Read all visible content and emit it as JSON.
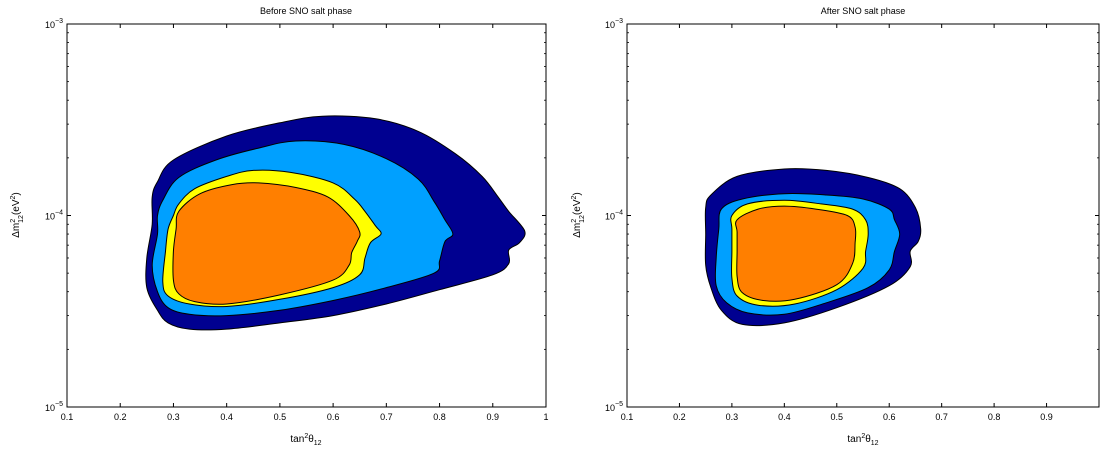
{
  "chart_data": [
    {
      "type": "contour",
      "title": "Before SNO salt phase",
      "xlabel": "tan",
      "xlabel_sup": "2",
      "xlabel_theta": "θ",
      "xlabel_sub": "12",
      "ylabel_delta": "Δm",
      "ylabel_sup": "2",
      "ylabel_sub": "12",
      "ylabel_unit": "(eV",
      "ylabel_unit_sup": "2",
      "ylabel_close": ")",
      "xlim": [
        0.1,
        1.0
      ],
      "ylim": [
        1e-05,
        0.001
      ],
      "yscale": "log",
      "xticks": [
        0.1,
        0.2,
        0.3,
        0.4,
        0.5,
        0.6,
        0.7,
        0.8,
        0.9,
        1
      ],
      "xtick_labels": [
        "0.1",
        "0.2",
        "0.3",
        "0.4",
        "0.5",
        "0.6",
        "0.7",
        "0.8",
        "0.9",
        "1"
      ],
      "yticks": [
        {
          "value": 1e-05,
          "base": "10",
          "exp": "−5"
        },
        {
          "value": 0.0001,
          "base": "10",
          "exp": "−4"
        },
        {
          "value": 0.001,
          "base": "10",
          "exp": "−3"
        }
      ],
      "grid": false,
      "regions": [
        {
          "color": "#000090",
          "points": [
            [
              0.27,
              0.00015
            ],
            [
              0.3,
              0.000195
            ],
            [
              0.4,
              0.00026
            ],
            [
              0.5,
              0.000305
            ],
            [
              0.58,
              0.00033
            ],
            [
              0.68,
              0.00032
            ],
            [
              0.76,
              0.000275
            ],
            [
              0.83,
              0.00021
            ],
            [
              0.88,
              0.00016
            ],
            [
              0.91,
              0.000125
            ],
            [
              0.93,
              0.000105
            ],
            [
              0.96,
              8.3e-05
            ],
            [
              0.95,
              7.2e-05
            ],
            [
              0.93,
              6.6e-05
            ],
            [
              0.93,
              5.6e-05
            ],
            [
              0.9,
              4.9e-05
            ],
            [
              0.8,
              4.1e-05
            ],
            [
              0.7,
              3.45e-05
            ],
            [
              0.6,
              3e-05
            ],
            [
              0.5,
              2.75e-05
            ],
            [
              0.4,
              2.55e-05
            ],
            [
              0.33,
              2.55e-05
            ],
            [
              0.29,
              2.75e-05
            ],
            [
              0.27,
              3.2e-05
            ],
            [
              0.25,
              4.2e-05
            ],
            [
              0.25,
              6e-05
            ],
            [
              0.26,
              9e-05
            ],
            [
              0.26,
              0.000125
            ]
          ]
        },
        {
          "color": "#00a0ff",
          "points": [
            [
              0.28,
              0.00012
            ],
            [
              0.31,
              0.000158
            ],
            [
              0.38,
              0.000195
            ],
            [
              0.46,
              0.000225
            ],
            [
              0.53,
              0.000245
            ],
            [
              0.62,
              0.000235
            ],
            [
              0.7,
              0.000198
            ],
            [
              0.76,
              0.000155
            ],
            [
              0.79,
              0.000118
            ],
            [
              0.81,
              9.5e-05
            ],
            [
              0.825,
              8e-05
            ],
            [
              0.81,
              7.3e-05
            ],
            [
              0.8,
              5.8e-05
            ],
            [
              0.79,
              5e-05
            ],
            [
              0.7,
              4.2e-05
            ],
            [
              0.6,
              3.6e-05
            ],
            [
              0.5,
              3.2e-05
            ],
            [
              0.4,
              3e-05
            ],
            [
              0.33,
              3.05e-05
            ],
            [
              0.29,
              3.3e-05
            ],
            [
              0.27,
              4e-05
            ],
            [
              0.26,
              5.5e-05
            ],
            [
              0.27,
              8e-05
            ],
            [
              0.27,
              0.0001
            ]
          ]
        },
        {
          "color": "#ffff00",
          "points": [
            [
              0.31,
              0.000115
            ],
            [
              0.34,
              0.000138
            ],
            [
              0.4,
              0.00016
            ],
            [
              0.45,
              0.000172
            ],
            [
              0.52,
              0.000168
            ],
            [
              0.6,
              0.000148
            ],
            [
              0.64,
              0.000122
            ],
            [
              0.66,
              0.000105
            ],
            [
              0.68,
              8.8e-05
            ],
            [
              0.69,
              8e-05
            ],
            [
              0.67,
              7.2e-05
            ],
            [
              0.66,
              6e-05
            ],
            [
              0.65,
              4.9e-05
            ],
            [
              0.6,
              4.2e-05
            ],
            [
              0.5,
              3.65e-05
            ],
            [
              0.4,
              3.35e-05
            ],
            [
              0.33,
              3.45e-05
            ],
            [
              0.29,
              3.8e-05
            ],
            [
              0.28,
              4.5e-05
            ],
            [
              0.285,
              6.5e-05
            ],
            [
              0.29,
              8.5e-05
            ],
            [
              0.3,
              0.0001
            ]
          ]
        },
        {
          "color": "#ff7f00",
          "points": [
            [
              0.31,
              0.000105
            ],
            [
              0.35,
              0.00013
            ],
            [
              0.41,
              0.000145
            ],
            [
              0.46,
              0.000148
            ],
            [
              0.53,
              0.00014
            ],
            [
              0.59,
              0.000125
            ],
            [
              0.63,
              0.0001
            ],
            [
              0.65,
              8.2e-05
            ],
            [
              0.645,
              7.3e-05
            ],
            [
              0.635,
              6.4e-05
            ],
            [
              0.63,
              5.5e-05
            ],
            [
              0.6,
              4.6e-05
            ],
            [
              0.5,
              3.85e-05
            ],
            [
              0.4,
              3.45e-05
            ],
            [
              0.34,
              3.55e-05
            ],
            [
              0.31,
              3.9e-05
            ],
            [
              0.3,
              4.6e-05
            ],
            [
              0.3,
              6.5e-05
            ],
            [
              0.305,
              8.5e-05
            ]
          ]
        }
      ]
    },
    {
      "type": "contour",
      "title": "After SNO salt phase",
      "xlabel": "tan",
      "xlabel_sup": "2",
      "xlabel_theta": "θ",
      "xlabel_sub": "12",
      "ylabel_delta": "Δm",
      "ylabel_sup": "2",
      "ylabel_sub": "12",
      "ylabel_unit": "(eV",
      "ylabel_unit_sup": "2",
      "ylabel_close": ")",
      "xlim": [
        0.1,
        1.0
      ],
      "ylim": [
        1e-05,
        0.001
      ],
      "yscale": "log",
      "xticks": [
        0.1,
        0.2,
        0.3,
        0.4,
        0.5,
        0.6,
        0.7,
        0.8,
        0.9,
        1
      ],
      "xtick_labels": [
        "0.1",
        "0.2",
        "0.3",
        "0.4",
        "0.5",
        "0.6",
        "0.7",
        "0.8",
        "0.9",
        ""
      ],
      "yticks": [
        {
          "value": 1e-05,
          "base": "10",
          "exp": "−5"
        },
        {
          "value": 0.0001,
          "base": "10",
          "exp": "−4"
        },
        {
          "value": 0.001,
          "base": "10",
          "exp": "−3"
        }
      ],
      "grid": false,
      "regions": [
        {
          "color": "#000090",
          "points": [
            [
              0.26,
              0.000128
            ],
            [
              0.31,
              0.00016
            ],
            [
              0.4,
              0.000175
            ],
            [
              0.48,
              0.000172
            ],
            [
              0.56,
              0.000158
            ],
            [
              0.62,
              0.000138
            ],
            [
              0.65,
              0.00011
            ],
            [
              0.66,
              8.5e-05
            ],
            [
              0.655,
              7.3e-05
            ],
            [
              0.64,
              6.5e-05
            ],
            [
              0.64,
              5.4e-05
            ],
            [
              0.6,
              4.3e-05
            ],
            [
              0.5,
              3.3e-05
            ],
            [
              0.4,
              2.75e-05
            ],
            [
              0.32,
              2.7e-05
            ],
            [
              0.28,
              3.2e-05
            ],
            [
              0.26,
              4.2e-05
            ],
            [
              0.25,
              5.5e-05
            ],
            [
              0.25,
              8e-05
            ],
            [
              0.25,
              0.00011
            ]
          ]
        },
        {
          "color": "#00a0ff",
          "points": [
            [
              0.28,
              0.000108
            ],
            [
              0.32,
              0.000122
            ],
            [
              0.4,
              0.00013
            ],
            [
              0.48,
              0.000128
            ],
            [
              0.55,
              0.000122
            ],
            [
              0.6,
              0.000108
            ],
            [
              0.61,
              9.5e-05
            ],
            [
              0.62,
              8e-05
            ],
            [
              0.61,
              6.5e-05
            ],
            [
              0.6,
              5.2e-05
            ],
            [
              0.56,
              4.2e-05
            ],
            [
              0.48,
              3.5e-05
            ],
            [
              0.4,
              3.05e-05
            ],
            [
              0.33,
              3.1e-05
            ],
            [
              0.29,
              3.5e-05
            ],
            [
              0.27,
              4.3e-05
            ],
            [
              0.27,
              6e-05
            ],
            [
              0.275,
              8.5e-05
            ]
          ]
        },
        {
          "color": "#ffff00",
          "points": [
            [
              0.3,
              0.0001
            ],
            [
              0.33,
              0.000115
            ],
            [
              0.4,
              0.00012
            ],
            [
              0.47,
              0.000115
            ],
            [
              0.53,
              0.000108
            ],
            [
              0.555,
              9.5e-05
            ],
            [
              0.56,
              8e-05
            ],
            [
              0.555,
              6.5e-05
            ],
            [
              0.55,
              5.3e-05
            ],
            [
              0.5,
              4.1e-05
            ],
            [
              0.42,
              3.45e-05
            ],
            [
              0.35,
              3.4e-05
            ],
            [
              0.31,
              3.8e-05
            ],
            [
              0.3,
              4.7e-05
            ],
            [
              0.3,
              6.5e-05
            ],
            [
              0.3,
              8.5e-05
            ]
          ]
        },
        {
          "color": "#ff7f00",
          "points": [
            [
              0.31,
              9.5e-05
            ],
            [
              0.35,
              0.000108
            ],
            [
              0.4,
              0.000112
            ],
            [
              0.46,
              0.000108
            ],
            [
              0.52,
              0.0001
            ],
            [
              0.535,
              8.7e-05
            ],
            [
              0.535,
              7.2e-05
            ],
            [
              0.53,
              5.6e-05
            ],
            [
              0.5,
              4.35e-05
            ],
            [
              0.42,
              3.65e-05
            ],
            [
              0.36,
              3.6e-05
            ],
            [
              0.32,
              3.95e-05
            ],
            [
              0.31,
              4.8e-05
            ],
            [
              0.31,
              6.5e-05
            ],
            [
              0.31,
              8.2e-05
            ]
          ]
        }
      ]
    }
  ]
}
